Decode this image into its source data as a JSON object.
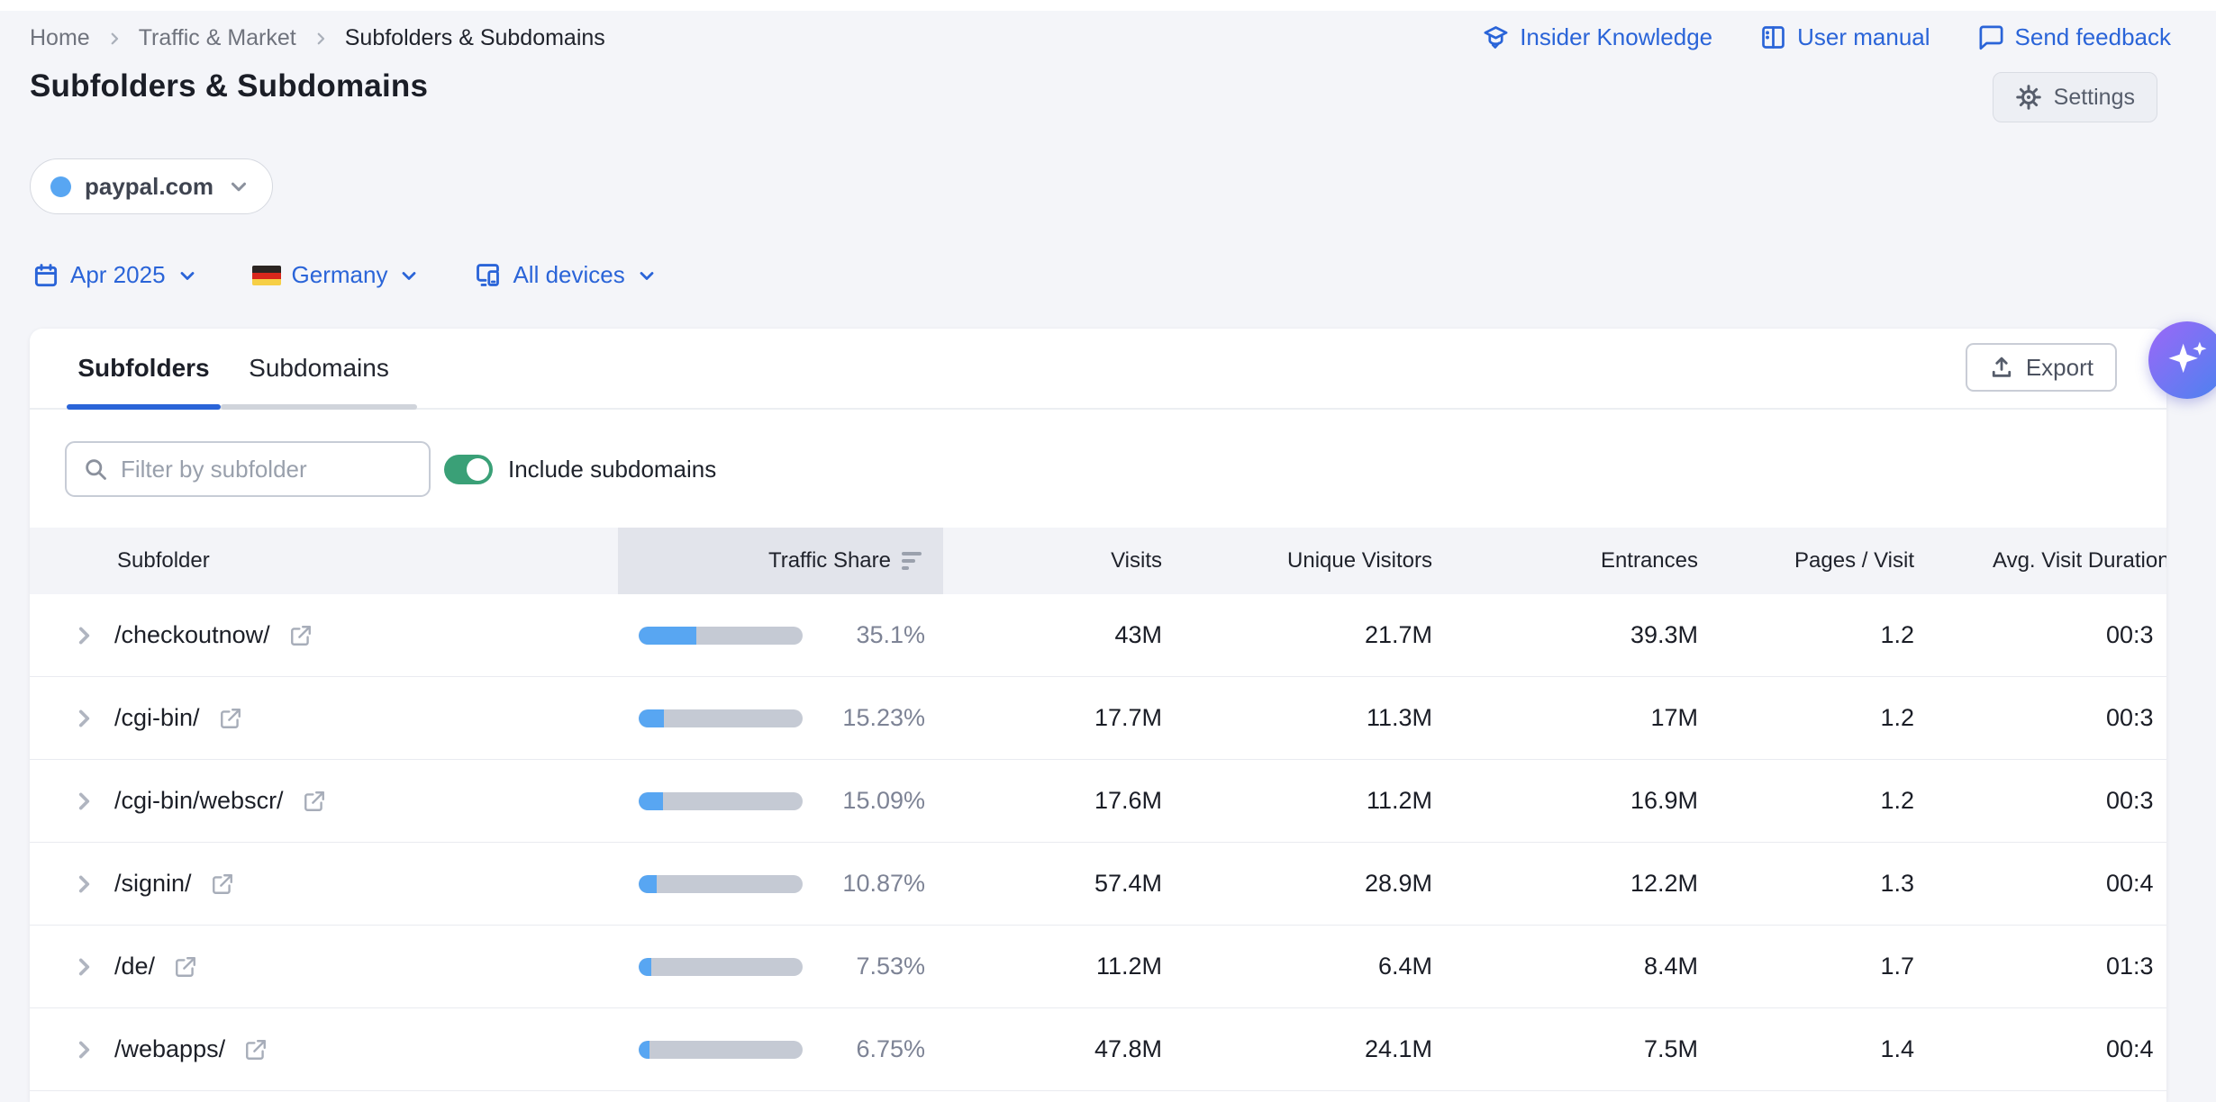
{
  "breadcrumb": {
    "items": [
      "Home",
      "Traffic & Market",
      "Subfolders & Subdomains"
    ]
  },
  "header_links": {
    "insider": "Insider Knowledge",
    "manual": "User manual",
    "feedback": "Send feedback"
  },
  "page": {
    "title": "Subfolders & Subdomains",
    "settings_label": "Settings"
  },
  "project": {
    "domain": "paypal.com"
  },
  "filters": {
    "date": "Apr 2025",
    "country": "Germany",
    "devices": "All devices"
  },
  "tabs": {
    "active": "Subfolders",
    "inactive": "Subdomains"
  },
  "toolbar": {
    "export_label": "Export",
    "filter_placeholder": "Filter by subfolder",
    "toggle_label": "Include subdomains",
    "toggle_on": true
  },
  "table": {
    "sorted_by": "Traffic Share",
    "columns": [
      "Subfolder",
      "Traffic Share",
      "Visits",
      "Unique Visitors",
      "Entrances",
      "Pages / Visit",
      "Avg. Visit Duration"
    ],
    "rows": [
      {
        "subfolder": "/checkoutnow/",
        "traffic_share_pct": 35.1,
        "traffic_share": "35.1%",
        "visits": "43M",
        "unique_visitors": "21.7M",
        "entrances": "39.3M",
        "pages_per_visit": "1.2",
        "avg_visit_duration": "00:3"
      },
      {
        "subfolder": "/cgi-bin/",
        "traffic_share_pct": 15.23,
        "traffic_share": "15.23%",
        "visits": "17.7M",
        "unique_visitors": "11.3M",
        "entrances": "17M",
        "pages_per_visit": "1.2",
        "avg_visit_duration": "00:3"
      },
      {
        "subfolder": "/cgi-bin/webscr/",
        "traffic_share_pct": 15.09,
        "traffic_share": "15.09%",
        "visits": "17.6M",
        "unique_visitors": "11.2M",
        "entrances": "16.9M",
        "pages_per_visit": "1.2",
        "avg_visit_duration": "00:3"
      },
      {
        "subfolder": "/signin/",
        "traffic_share_pct": 10.87,
        "traffic_share": "10.87%",
        "visits": "57.4M",
        "unique_visitors": "28.9M",
        "entrances": "12.2M",
        "pages_per_visit": "1.3",
        "avg_visit_duration": "00:4"
      },
      {
        "subfolder": "/de/",
        "traffic_share_pct": 7.53,
        "traffic_share": "7.53%",
        "visits": "11.2M",
        "unique_visitors": "6.4M",
        "entrances": "8.4M",
        "pages_per_visit": "1.7",
        "avg_visit_duration": "01:3"
      },
      {
        "subfolder": "/webapps/",
        "traffic_share_pct": 6.75,
        "traffic_share": "6.75%",
        "visits": "47.8M",
        "unique_visitors": "24.1M",
        "entrances": "7.5M",
        "pages_per_visit": "1.4",
        "avg_visit_duration": "00:4"
      }
    ]
  },
  "colors": {
    "accent_blue": "#2a64d8",
    "bar_blue": "#58a6f2",
    "bar_track": "#c5cad4",
    "toggle_green": "#3aa077",
    "sorted_header_bg": "#e2e4eb",
    "page_bg": "#f4f5f9"
  }
}
